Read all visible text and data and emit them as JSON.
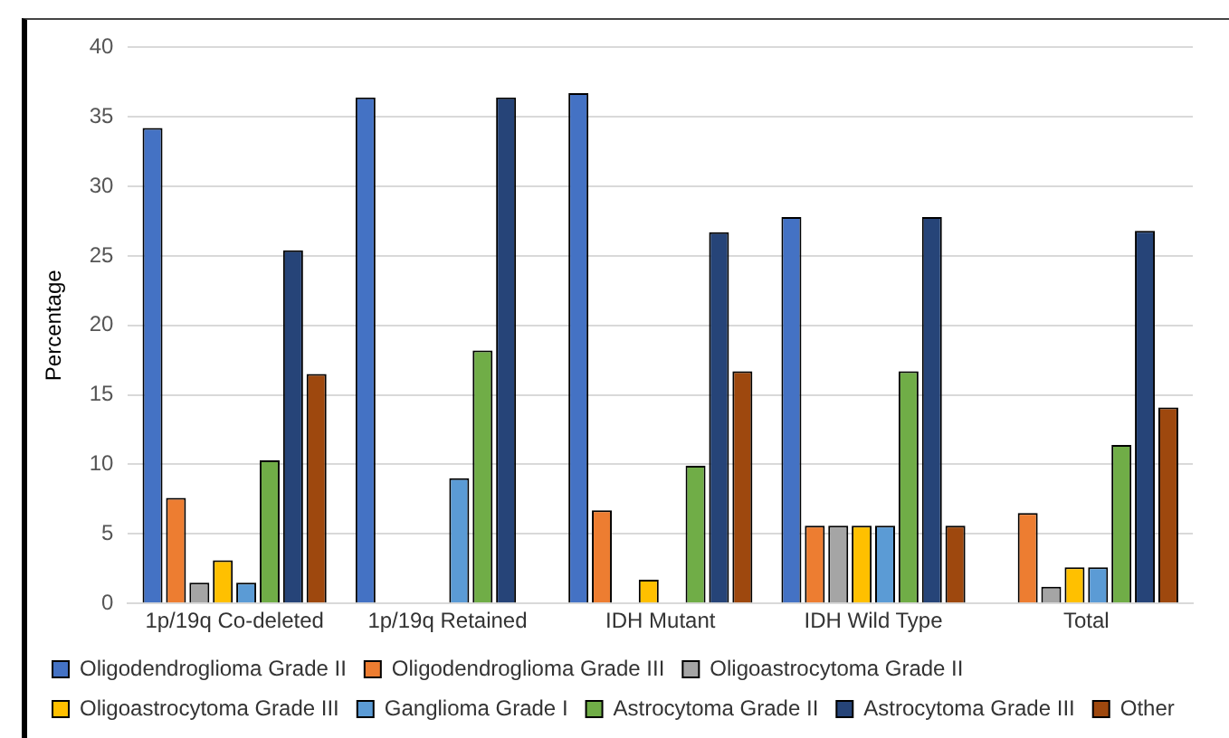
{
  "chart_data": {
    "type": "bar",
    "ylabel": "Percentage",
    "categories": [
      "1p/19q Co-deleted",
      "1p/19q Retained",
      "IDH Mutant",
      "IDH Wild Type",
      "Total"
    ],
    "series": [
      {
        "name": "Oligodendroglioma Grade II",
        "color": "#4472c4",
        "values": [
          34.2,
          36.4,
          36.7,
          27.8,
          0
        ]
      },
      {
        "name": "Oligodendroglioma Grade III",
        "color": "#ed7d31",
        "values": [
          7.6,
          0,
          6.7,
          5.6,
          6.5
        ]
      },
      {
        "name": "Oligoastrocytoma Grade II",
        "color": "#a5a5a5",
        "values": [
          1.5,
          0,
          0,
          5.6,
          1.2
        ]
      },
      {
        "name": "Oligoastrocytoma Grade III",
        "color": "#ffc000",
        "values": [
          3.1,
          0,
          1.7,
          5.6,
          2.6
        ]
      },
      {
        "name": "Ganglioma Grade I",
        "color": "#5b9bd5",
        "values": [
          1.5,
          9.0,
          0,
          5.6,
          2.6
        ]
      },
      {
        "name": "Astrocytoma Grade II",
        "color": "#70ad47",
        "values": [
          10.3,
          18.2,
          9.9,
          16.7,
          11.4
        ]
      },
      {
        "name": "Astrocytoma Grade III",
        "color": "#264478",
        "values": [
          25.4,
          36.4,
          26.7,
          27.8,
          26.8
        ]
      },
      {
        "name": "Other",
        "color": "#9e480e",
        "values": [
          16.5,
          0,
          16.7,
          5.6,
          14.1
        ]
      }
    ],
    "ylim": [
      0,
      40
    ],
    "yticks": [
      0,
      5,
      10,
      15,
      20,
      25,
      30,
      35,
      40
    ],
    "grid": "y",
    "legend": "bottom"
  }
}
